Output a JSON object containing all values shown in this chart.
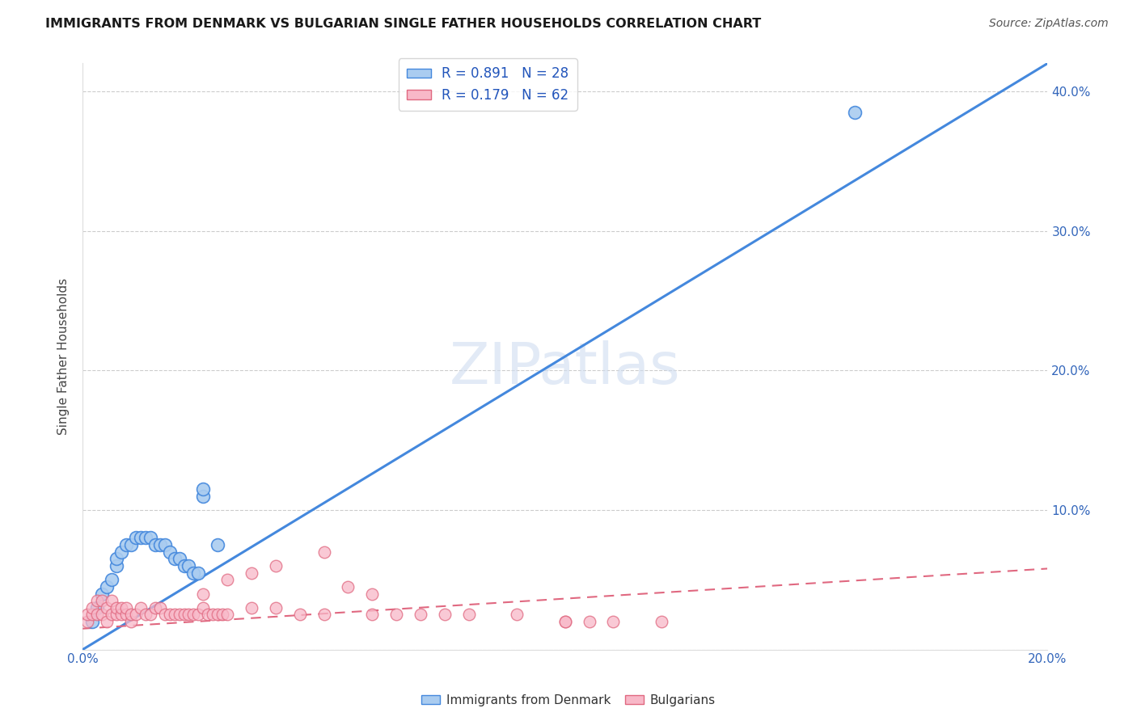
{
  "title": "IMMIGRANTS FROM DENMARK VS BULGARIAN SINGLE FATHER HOUSEHOLDS CORRELATION CHART",
  "source": "Source: ZipAtlas.com",
  "ylabel": "Single Father Households",
  "xlim": [
    0.0,
    0.2
  ],
  "ylim": [
    0.0,
    0.42
  ],
  "xticks": [
    0.0,
    0.04,
    0.08,
    0.12,
    0.16,
    0.2
  ],
  "xtick_labels": [
    "0.0%",
    "",
    "",
    "",
    "",
    "20.0%"
  ],
  "yticks": [
    0.0,
    0.1,
    0.2,
    0.3,
    0.4
  ],
  "ytick_labels_right": [
    "",
    "10.0%",
    "20.0%",
    "30.0%",
    "40.0%"
  ],
  "denmark_R": 0.891,
  "denmark_N": 28,
  "bulgarian_R": 0.179,
  "bulgarian_N": 62,
  "denmark_fill_color": "#aaccf0",
  "danish_edge_color": "#4488dd",
  "bulgarian_fill_color": "#f8b8c8",
  "bulgarian_edge_color": "#e06880",
  "denmark_line_color": "#4488dd",
  "bulgarian_line_color": "#e06880",
  "watermark": "ZIPatlas",
  "legend_denmark": "R = 0.891   N = 28",
  "legend_bulgarian": "R = 0.179   N = 62",
  "denmark_scatter_x": [
    0.002,
    0.003,
    0.004,
    0.005,
    0.006,
    0.007,
    0.007,
    0.008,
    0.009,
    0.01,
    0.011,
    0.012,
    0.013,
    0.014,
    0.015,
    0.016,
    0.017,
    0.018,
    0.019,
    0.02,
    0.021,
    0.022,
    0.023,
    0.024,
    0.025,
    0.025,
    0.028,
    0.16
  ],
  "denmark_scatter_y": [
    0.02,
    0.03,
    0.04,
    0.045,
    0.05,
    0.06,
    0.065,
    0.07,
    0.075,
    0.075,
    0.08,
    0.08,
    0.08,
    0.08,
    0.075,
    0.075,
    0.075,
    0.07,
    0.065,
    0.065,
    0.06,
    0.06,
    0.055,
    0.055,
    0.11,
    0.115,
    0.075,
    0.385
  ],
  "bulgarian_scatter_x": [
    0.001,
    0.001,
    0.002,
    0.002,
    0.003,
    0.003,
    0.004,
    0.004,
    0.005,
    0.005,
    0.006,
    0.006,
    0.007,
    0.007,
    0.008,
    0.008,
    0.009,
    0.009,
    0.01,
    0.01,
    0.011,
    0.012,
    0.013,
    0.014,
    0.015,
    0.016,
    0.017,
    0.018,
    0.019,
    0.02,
    0.021,
    0.022,
    0.023,
    0.024,
    0.025,
    0.026,
    0.027,
    0.028,
    0.029,
    0.03,
    0.035,
    0.04,
    0.045,
    0.05,
    0.06,
    0.065,
    0.07,
    0.075,
    0.08,
    0.09,
    0.1,
    0.105,
    0.11,
    0.12,
    0.025,
    0.03,
    0.035,
    0.04,
    0.05,
    0.055,
    0.06,
    0.1
  ],
  "bulgarian_scatter_y": [
    0.02,
    0.025,
    0.025,
    0.03,
    0.025,
    0.035,
    0.025,
    0.035,
    0.02,
    0.03,
    0.025,
    0.035,
    0.025,
    0.03,
    0.025,
    0.03,
    0.025,
    0.03,
    0.02,
    0.025,
    0.025,
    0.03,
    0.025,
    0.025,
    0.03,
    0.03,
    0.025,
    0.025,
    0.025,
    0.025,
    0.025,
    0.025,
    0.025,
    0.025,
    0.03,
    0.025,
    0.025,
    0.025,
    0.025,
    0.025,
    0.03,
    0.03,
    0.025,
    0.025,
    0.025,
    0.025,
    0.025,
    0.025,
    0.025,
    0.025,
    0.02,
    0.02,
    0.02,
    0.02,
    0.04,
    0.05,
    0.055,
    0.06,
    0.07,
    0.045,
    0.04,
    0.02
  ],
  "denmark_trend_x": [
    0.0,
    0.2
  ],
  "denmark_trend_y": [
    0.0,
    0.42
  ],
  "bulgarian_trend_x": [
    0.0,
    0.2
  ],
  "bulgarian_trend_y": [
    0.015,
    0.058
  ]
}
